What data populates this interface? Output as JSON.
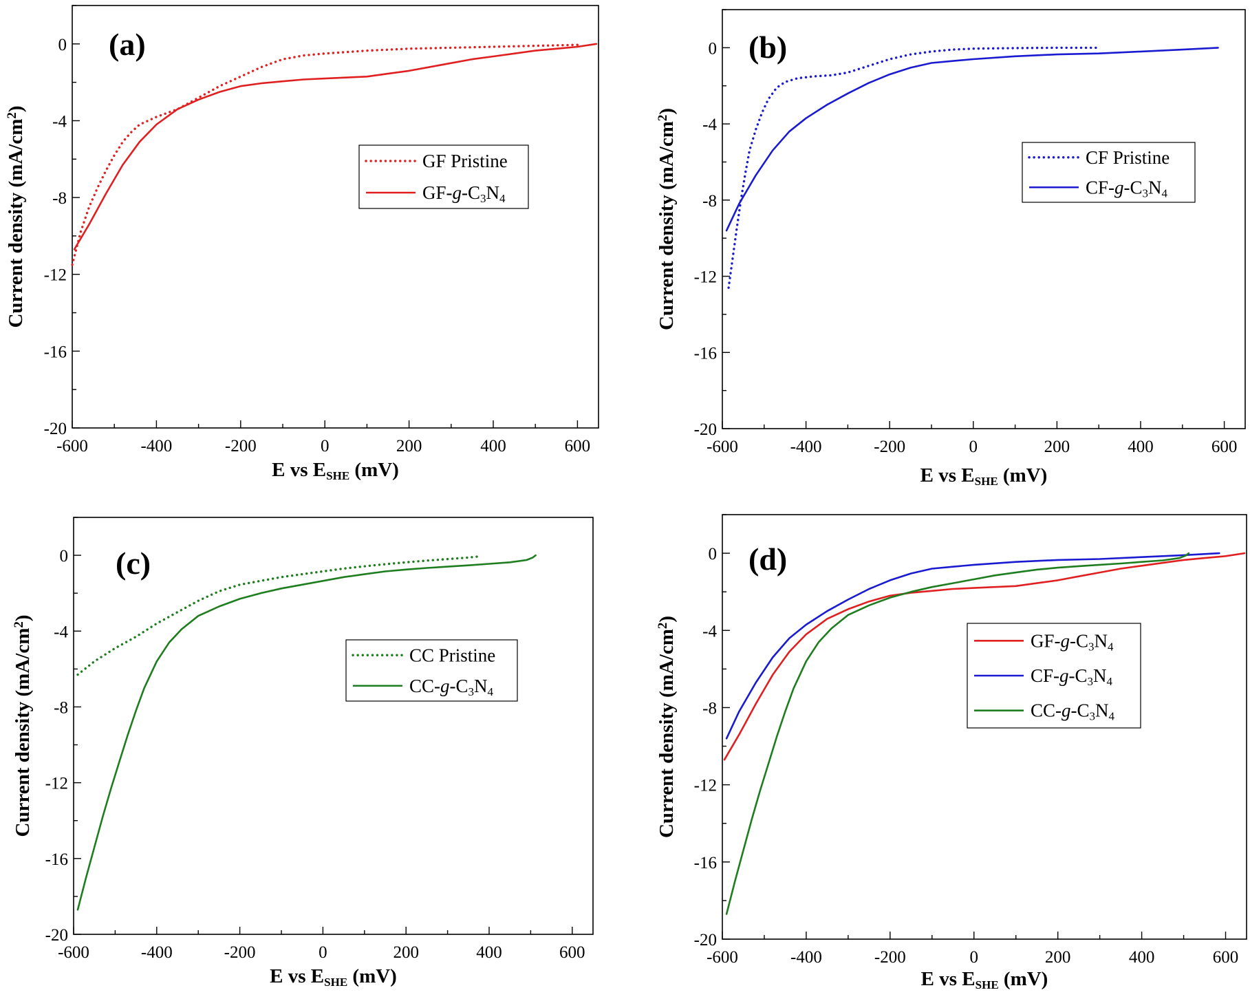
{
  "figure": {
    "panels": [
      "(a)",
      "(b)",
      "(c)",
      "(d)"
    ]
  },
  "chart_data": [
    {
      "type": "line",
      "panel_label": "(a)",
      "xlabel": "E vs E_SHE (mV)",
      "xlabel_main": "E vs E",
      "xlabel_sub": "SHE",
      "xlabel_tail": " (mV)",
      "ylabel": "Current density (mA/cm2)",
      "ylabel_main": "Current density (mA/cm",
      "ylabel_sup": "2",
      "ylabel_tail": ")",
      "xlim": [
        -600,
        650
      ],
      "ylim": [
        -20,
        2
      ],
      "xticks": [
        -600,
        -400,
        -200,
        0,
        200,
        400,
        600
      ],
      "yticks": [
        -20,
        -16,
        -12,
        -8,
        -4,
        0
      ],
      "xtick_labels": [
        "-600",
        "-400",
        "-200",
        "0",
        "200",
        "400",
        "600"
      ],
      "ytick_labels": [
        "-20",
        "-16",
        "-12",
        "-8",
        "-4",
        "0"
      ],
      "legend_position": "center-right",
      "series": [
        {
          "name": "GF Pristine",
          "legend_parts": [
            {
              "t": "GF Pristine",
              "s": "n"
            }
          ],
          "color": "#e02020",
          "style": "dotted",
          "x": [
            -600,
            -580,
            -560,
            -540,
            -520,
            -500,
            -480,
            -460,
            -440,
            -420,
            -400,
            -350,
            -300,
            -250,
            -200,
            -150,
            -100,
            -50,
            0,
            100,
            200,
            300,
            400,
            500,
            600
          ],
          "y": [
            -11.5,
            -9.8,
            -8.5,
            -7.5,
            -6.6,
            -5.8,
            -5.1,
            -4.6,
            -4.2,
            -4.0,
            -3.8,
            -3.4,
            -2.8,
            -2.2,
            -1.7,
            -1.2,
            -0.8,
            -0.6,
            -0.5,
            -0.35,
            -0.25,
            -0.2,
            -0.15,
            -0.1,
            -0.05
          ]
        },
        {
          "name": "GF-g-C3N4",
          "legend_parts": [
            {
              "t": "GF-",
              "s": "n"
            },
            {
              "t": "g",
              "s": "i"
            },
            {
              "t": "-C",
              "s": "n"
            },
            {
              "t": "3",
              "s": "sub"
            },
            {
              "t": "N",
              "s": "n"
            },
            {
              "t": "4",
              "s": "sub"
            }
          ],
          "color": "#e02020",
          "style": "solid",
          "x": [
            -595,
            -560,
            -520,
            -480,
            -440,
            -400,
            -350,
            -300,
            -250,
            -200,
            -150,
            -100,
            -50,
            0,
            50,
            100,
            150,
            200,
            250,
            300,
            350,
            400,
            450,
            500,
            550,
            600,
            645
          ],
          "y": [
            -10.7,
            -9.4,
            -7.8,
            -6.3,
            -5.1,
            -4.2,
            -3.4,
            -2.9,
            -2.5,
            -2.2,
            -2.05,
            -1.95,
            -1.85,
            -1.8,
            -1.75,
            -1.7,
            -1.55,
            -1.4,
            -1.2,
            -1.0,
            -0.8,
            -0.65,
            -0.5,
            -0.35,
            -0.25,
            -0.15,
            0.0
          ]
        }
      ]
    },
    {
      "type": "line",
      "panel_label": "(b)",
      "xlabel": "E vs E_SHE (mV)",
      "xlabel_main": "E vs E",
      "xlabel_sub": "SHE",
      "xlabel_tail": " (mV)",
      "ylabel": "Current density (mA/cm2)",
      "ylabel_main": "Current density (mA/cm",
      "ylabel_sup": "2",
      "ylabel_tail": ")",
      "xlim": [
        -600,
        650
      ],
      "ylim": [
        -20,
        2
      ],
      "xticks": [
        -600,
        -400,
        -200,
        0,
        200,
        400,
        600
      ],
      "yticks": [
        -20,
        -16,
        -12,
        -8,
        -4,
        0
      ],
      "xtick_labels": [
        "-600",
        "-400",
        "-200",
        "0",
        "200",
        "400",
        "600"
      ],
      "ytick_labels": [
        "-20",
        "-16",
        "-12",
        "-8",
        "-4",
        "0"
      ],
      "legend_position": "upper-right",
      "series": [
        {
          "name": "CF Pristine",
          "legend_parts": [
            {
              "t": "CF Pristine",
              "s": "n"
            }
          ],
          "color": "#1a1ad0",
          "style": "dotted",
          "x": [
            -585,
            -575,
            -565,
            -555,
            -545,
            -535,
            -520,
            -505,
            -490,
            -470,
            -450,
            -420,
            -380,
            -340,
            -300,
            -250,
            -200,
            -150,
            -100,
            -50,
            0,
            100,
            200,
            300
          ],
          "y": [
            -12.6,
            -11.0,
            -9.4,
            -7.9,
            -6.6,
            -5.4,
            -4.3,
            -3.4,
            -2.7,
            -2.1,
            -1.8,
            -1.6,
            -1.5,
            -1.45,
            -1.3,
            -0.95,
            -0.6,
            -0.35,
            -0.2,
            -0.1,
            -0.05,
            -0.02,
            0.0,
            0.0
          ]
        },
        {
          "name": "CF-g-C3N4",
          "legend_parts": [
            {
              "t": "CF-",
              "s": "n"
            },
            {
              "t": "g",
              "s": "i"
            },
            {
              "t": "-C",
              "s": "n"
            },
            {
              "t": "3",
              "s": "sub"
            },
            {
              "t": "N",
              "s": "n"
            },
            {
              "t": "4",
              "s": "sub"
            }
          ],
          "color": "#1a1ad0",
          "style": "solid",
          "x": [
            -590,
            -560,
            -520,
            -480,
            -440,
            -400,
            -350,
            -300,
            -250,
            -200,
            -150,
            -100,
            -50,
            0,
            100,
            200,
            300,
            400,
            500,
            585
          ],
          "y": [
            -9.6,
            -8.2,
            -6.7,
            -5.4,
            -4.4,
            -3.7,
            -3.0,
            -2.4,
            -1.85,
            -1.4,
            -1.05,
            -0.8,
            -0.7,
            -0.6,
            -0.45,
            -0.35,
            -0.3,
            -0.2,
            -0.1,
            0.0
          ]
        }
      ]
    },
    {
      "type": "line",
      "panel_label": "(c)",
      "xlabel": "E vs E_SHE (mV)",
      "xlabel_main": "E vs E",
      "xlabel_sub": "SHE",
      "xlabel_tail": " (mV)",
      "ylabel": "Current density (mA/cm2)",
      "ylabel_main": "Current density (mA/cm",
      "ylabel_sup": "2",
      "ylabel_tail": ")",
      "xlim": [
        -600,
        650
      ],
      "ylim": [
        -20,
        2
      ],
      "xticks": [
        -600,
        -400,
        -200,
        0,
        200,
        400,
        600
      ],
      "yticks": [
        -20,
        -16,
        -12,
        -8,
        -4,
        0
      ],
      "xtick_labels": [
        "-600",
        "-400",
        "-200",
        "0",
        "200",
        "400",
        "600"
      ],
      "ytick_labels": [
        "-20",
        "-16",
        "-12",
        "-8",
        "-4",
        "0"
      ],
      "legend_position": "center-right",
      "series": [
        {
          "name": "CC Pristine",
          "legend_parts": [
            {
              "t": "CC Pristine",
              "s": "n"
            }
          ],
          "color": "#1e7d1e",
          "style": "dotted",
          "x": [
            -590,
            -550,
            -500,
            -450,
            -400,
            -350,
            -300,
            -250,
            -200,
            -150,
            -100,
            -50,
            0,
            50,
            100,
            150,
            200,
            250,
            300,
            350,
            380
          ],
          "y": [
            -6.3,
            -5.6,
            -4.9,
            -4.3,
            -3.6,
            -3.0,
            -2.4,
            -1.9,
            -1.55,
            -1.35,
            -1.15,
            -1.0,
            -0.85,
            -0.7,
            -0.58,
            -0.47,
            -0.37,
            -0.28,
            -0.2,
            -0.12,
            -0.05
          ]
        },
        {
          "name": "CC-g-C3N4",
          "legend_parts": [
            {
              "t": "CC-",
              "s": "n"
            },
            {
              "t": "g",
              "s": "i"
            },
            {
              "t": "-C",
              "s": "n"
            },
            {
              "t": "3",
              "s": "sub"
            },
            {
              "t": "N",
              "s": "n"
            },
            {
              "t": "4",
              "s": "sub"
            }
          ],
          "color": "#1e7d1e",
          "style": "solid",
          "x": [
            -590,
            -570,
            -550,
            -530,
            -510,
            -490,
            -470,
            -450,
            -430,
            -400,
            -370,
            -340,
            -300,
            -250,
            -200,
            -150,
            -100,
            -50,
            0,
            50,
            100,
            150,
            200,
            250,
            300,
            350,
            400,
            450,
            490,
            505,
            512
          ],
          "y": [
            -18.7,
            -17.0,
            -15.4,
            -13.8,
            -12.3,
            -10.9,
            -9.5,
            -8.2,
            -7.0,
            -5.6,
            -4.6,
            -3.9,
            -3.2,
            -2.7,
            -2.3,
            -2.0,
            -1.75,
            -1.55,
            -1.35,
            -1.15,
            -1.0,
            -0.85,
            -0.75,
            -0.67,
            -0.6,
            -0.53,
            -0.45,
            -0.37,
            -0.25,
            -0.12,
            0.0
          ]
        }
      ]
    },
    {
      "type": "line",
      "panel_label": "(d)",
      "xlabel": "E vs E_SHE (mV)",
      "xlabel_main": "E vs E",
      "xlabel_sub": "SHE",
      "xlabel_tail": " (mV)",
      "ylabel": "Current density (mA/cm2)",
      "ylabel_main": "Current density (mA/cm",
      "ylabel_sup": "2",
      "ylabel_tail": ")",
      "xlim": [
        -600,
        650
      ],
      "ylim": [
        -20,
        2
      ],
      "xticks": [
        -600,
        -400,
        -200,
        0,
        200,
        400,
        600
      ],
      "yticks": [
        -20,
        -16,
        -12,
        -8,
        -4,
        0
      ],
      "xtick_labels": [
        "-600",
        "-400",
        "-200",
        "0",
        "200",
        "400",
        "600"
      ],
      "ytick_labels": [
        "-20",
        "-16",
        "-12",
        "-8",
        "-4",
        "0"
      ],
      "legend_position": "upper-right",
      "series": [
        {
          "name": "GF-g-C3N4",
          "legend_parts": [
            {
              "t": "GF-",
              "s": "n"
            },
            {
              "t": "g",
              "s": "i"
            },
            {
              "t": "-C",
              "s": "n"
            },
            {
              "t": "3",
              "s": "sub"
            },
            {
              "t": "N",
              "s": "n"
            },
            {
              "t": "4",
              "s": "sub"
            }
          ],
          "color": "#e02020",
          "style": "solid",
          "x": [
            -595,
            -560,
            -520,
            -480,
            -440,
            -400,
            -350,
            -300,
            -250,
            -200,
            -150,
            -100,
            -50,
            0,
            50,
            100,
            150,
            200,
            250,
            300,
            350,
            400,
            450,
            500,
            550,
            600,
            645
          ],
          "y": [
            -10.7,
            -9.4,
            -7.8,
            -6.3,
            -5.1,
            -4.2,
            -3.4,
            -2.9,
            -2.5,
            -2.2,
            -2.05,
            -1.95,
            -1.85,
            -1.8,
            -1.75,
            -1.7,
            -1.55,
            -1.4,
            -1.2,
            -1.0,
            -0.8,
            -0.65,
            -0.5,
            -0.35,
            -0.25,
            -0.15,
            0.0
          ]
        },
        {
          "name": "CF-g-C3N4",
          "legend_parts": [
            {
              "t": "CF-",
              "s": "n"
            },
            {
              "t": "g",
              "s": "i"
            },
            {
              "t": "-C",
              "s": "n"
            },
            {
              "t": "3",
              "s": "sub"
            },
            {
              "t": "N",
              "s": "n"
            },
            {
              "t": "4",
              "s": "sub"
            }
          ],
          "color": "#1a1ad0",
          "style": "solid",
          "x": [
            -590,
            -560,
            -520,
            -480,
            -440,
            -400,
            -350,
            -300,
            -250,
            -200,
            -150,
            -100,
            -50,
            0,
            100,
            200,
            300,
            400,
            500,
            585
          ],
          "y": [
            -9.6,
            -8.2,
            -6.7,
            -5.4,
            -4.4,
            -3.7,
            -3.0,
            -2.4,
            -1.85,
            -1.4,
            -1.05,
            -0.8,
            -0.7,
            -0.6,
            -0.45,
            -0.35,
            -0.3,
            -0.2,
            -0.1,
            0.0
          ]
        },
        {
          "name": "CC-g-C3N4",
          "legend_parts": [
            {
              "t": "CC-",
              "s": "n"
            },
            {
              "t": "g",
              "s": "i"
            },
            {
              "t": "-C",
              "s": "n"
            },
            {
              "t": "3",
              "s": "sub"
            },
            {
              "t": "N",
              "s": "n"
            },
            {
              "t": "4",
              "s": "sub"
            }
          ],
          "color": "#1e7d1e",
          "style": "solid",
          "x": [
            -590,
            -570,
            -550,
            -530,
            -510,
            -490,
            -470,
            -450,
            -430,
            -400,
            -370,
            -340,
            -300,
            -250,
            -200,
            -150,
            -100,
            -50,
            0,
            50,
            100,
            150,
            200,
            250,
            300,
            350,
            400,
            450,
            490,
            505,
            512
          ],
          "y": [
            -18.7,
            -17.0,
            -15.4,
            -13.8,
            -12.3,
            -10.9,
            -9.5,
            -8.2,
            -7.0,
            -5.6,
            -4.6,
            -3.9,
            -3.2,
            -2.7,
            -2.3,
            -2.0,
            -1.75,
            -1.55,
            -1.35,
            -1.15,
            -1.0,
            -0.85,
            -0.75,
            -0.67,
            -0.6,
            -0.53,
            -0.45,
            -0.37,
            -0.25,
            -0.12,
            0.0
          ]
        }
      ]
    }
  ]
}
